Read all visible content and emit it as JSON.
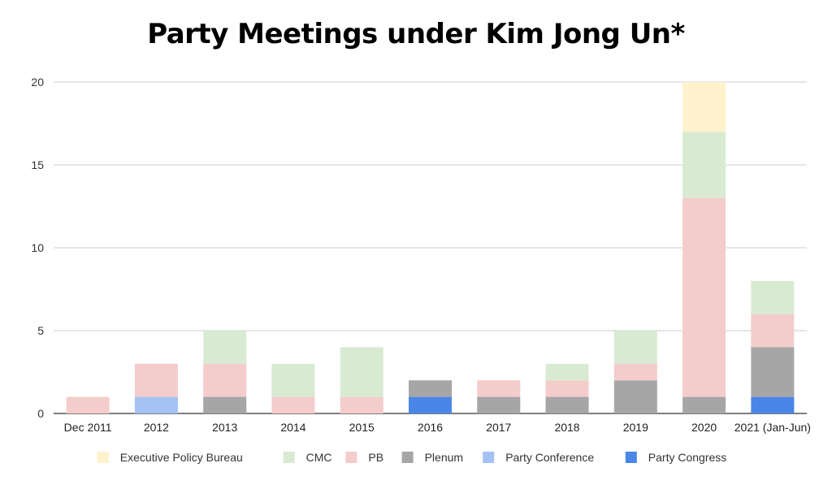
{
  "chart_data": {
    "type": "bar",
    "stacked": true,
    "title": "Party Meetings under Kim Jong Un*",
    "xlabel": "",
    "ylabel": "",
    "ylim": [
      0,
      20
    ],
    "yticks": [
      0,
      5,
      10,
      15,
      20
    ],
    "grid": true,
    "legend_position": "bottom",
    "categories": [
      "Dec 2011",
      "2012",
      "2013",
      "2014",
      "2015",
      "2016",
      "2017",
      "2018",
      "2019",
      "2020",
      "2021 (Jan-Jun)"
    ],
    "series": [
      {
        "name": "Party Congress",
        "color": "#4a86e8",
        "values": [
          0,
          0,
          0,
          0,
          0,
          1,
          0,
          0,
          0,
          0,
          1
        ]
      },
      {
        "name": "Party Conference",
        "color": "#a4c2f4",
        "values": [
          0,
          1,
          0,
          0,
          0,
          0,
          0,
          0,
          0,
          0,
          0
        ]
      },
      {
        "name": "Plenum",
        "color": "#a6a6a6",
        "values": [
          0,
          0,
          1,
          0,
          0,
          1,
          1,
          1,
          2,
          1,
          3
        ]
      },
      {
        "name": "PB",
        "color": "#f4cccc",
        "values": [
          1,
          2,
          2,
          1,
          1,
          0,
          1,
          1,
          1,
          12,
          2
        ]
      },
      {
        "name": "CMC",
        "color": "#d9ead3",
        "values": [
          0,
          0,
          2,
          2,
          3,
          0,
          0,
          1,
          2,
          4,
          2
        ]
      },
      {
        "name": "Executive Policy Bureau",
        "color": "#fff2cc",
        "values": [
          0,
          0,
          0,
          0,
          0,
          0,
          0,
          0,
          0,
          3,
          0
        ]
      }
    ],
    "legend_order": [
      "Executive Policy Bureau",
      "CMC",
      "PB",
      "Plenum",
      "Party Conference",
      "Party Congress"
    ]
  }
}
